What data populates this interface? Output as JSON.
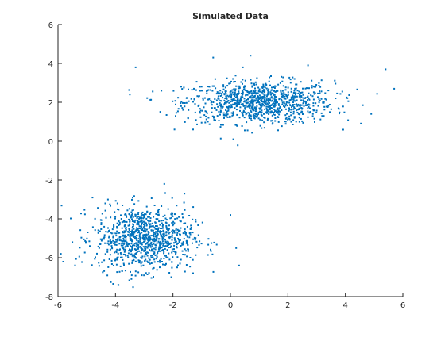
{
  "chart_data": {
    "type": "scatter",
    "title": "Simulated Data",
    "xlabel": "",
    "ylabel": "",
    "xlim": [
      -6,
      6
    ],
    "ylim": [
      -8,
      6
    ],
    "xticks": [
      -6,
      -4,
      -2,
      0,
      2,
      4,
      6
    ],
    "yticks": [
      -8,
      -6,
      -4,
      -2,
      0,
      2,
      4,
      6
    ],
    "grid": false,
    "legend": "none",
    "marker_color": "#0072BD",
    "clusters": [
      {
        "center": [
          1.0,
          2.0
        ],
        "spread": [
          1.3,
          0.55
        ],
        "count": 1000
      },
      {
        "center": [
          -3.0,
          -5.0
        ],
        "spread": [
          0.85,
          0.8
        ],
        "count": 1000
      }
    ],
    "series": [
      {
        "values": [
          [
            -0.6,
            4.3
          ],
          [
            0.7,
            4.4
          ],
          [
            2.7,
            3.9
          ],
          [
            5.4,
            3.7
          ],
          [
            5.7,
            2.7
          ],
          [
            4.9,
            1.4
          ],
          [
            -3.3,
            3.8
          ],
          [
            -3.5,
            2.4
          ],
          [
            -1.3,
            0.6
          ],
          [
            -0.8,
            2.6
          ],
          [
            0.1,
            0.1
          ],
          [
            -4.8,
            -2.9
          ],
          [
            -2.3,
            -2.2
          ],
          [
            -1.6,
            -2.7
          ],
          [
            0.0,
            -3.8
          ],
          [
            -5.5,
            -5.2
          ],
          [
            -5.9,
            -5.8
          ],
          [
            -3.9,
            -7.4
          ],
          [
            -1.4,
            -6.0
          ],
          [
            0.2,
            -5.5
          ],
          [
            0.3,
            -6.4
          ],
          [
            -1.3,
            -6.8
          ]
        ]
      }
    ]
  }
}
